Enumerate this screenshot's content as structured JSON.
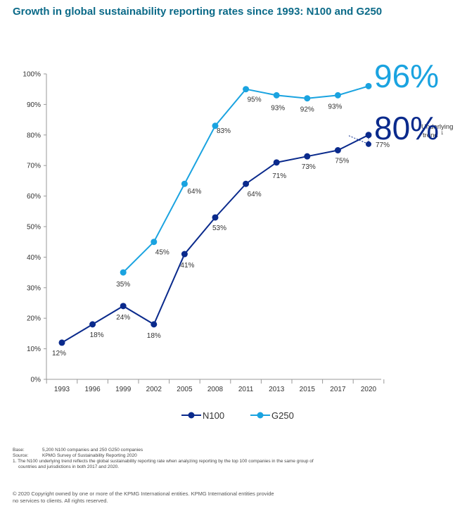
{
  "title": "Growth in global sustainability reporting rates since 1993: N100 and G250",
  "chart_data": {
    "type": "line",
    "title": "Growth in global sustainability reporting rates since 1993: N100 and G250",
    "categories": [
      "1993",
      "1996",
      "1999",
      "2002",
      "2005",
      "2008",
      "2011",
      "2013",
      "2015",
      "2017",
      "2020"
    ],
    "ylim": [
      0,
      100
    ],
    "yticks": [
      "0%",
      "10%",
      "20%",
      "30%",
      "40%",
      "50%",
      "60%",
      "70%",
      "80%",
      "90%",
      "100%"
    ],
    "grid": false,
    "legend_position": "bottom",
    "series": [
      {
        "name": "N100",
        "color": "#0a2a8c",
        "values": [
          12,
          18,
          24,
          18,
          41,
          53,
          64,
          71,
          73,
          75,
          80
        ],
        "labels": [
          "12%",
          "18%",
          "24%",
          "18%",
          "41%",
          "53%",
          "64%",
          "71%",
          "73%",
          "75%",
          null
        ]
      },
      {
        "name": "G250",
        "color": "#1aa3e0",
        "values": [
          null,
          null,
          35,
          45,
          64,
          83,
          95,
          93,
          92,
          93,
          96
        ],
        "labels": [
          null,
          null,
          "35%",
          "45%",
          "64%",
          "83%",
          "95%",
          "93%",
          "92%",
          "93%",
          null
        ]
      }
    ],
    "underlying_trend": {
      "category": "2020",
      "value": 77,
      "label": "77%",
      "text_line1": "Underlying",
      "text_line2": "trend",
      "footnote_mark": "1"
    },
    "highlights": {
      "g250": "96%",
      "n100": "80%"
    }
  },
  "notes": {
    "base_key": "Base:",
    "base_text": "5,200 N100 companies and 250 G250 companies",
    "source_key": "Source:",
    "source_text": "KPMG Survey of Sustainability Reporting 2020",
    "footnote_line1": "1.  The N100 underlying trend reflects the global sustainability reporting rate when analyzing reporting by the top 100 companies in the same group of",
    "footnote_line2": "countries and jurisdictions in both 2017 and 2020."
  },
  "copyright_line1": "© 2020 Copyright owned by one or more of the KPMG International entities. KPMG International entities provide",
  "copyright_line2": "no services to clients. All rights reserved."
}
